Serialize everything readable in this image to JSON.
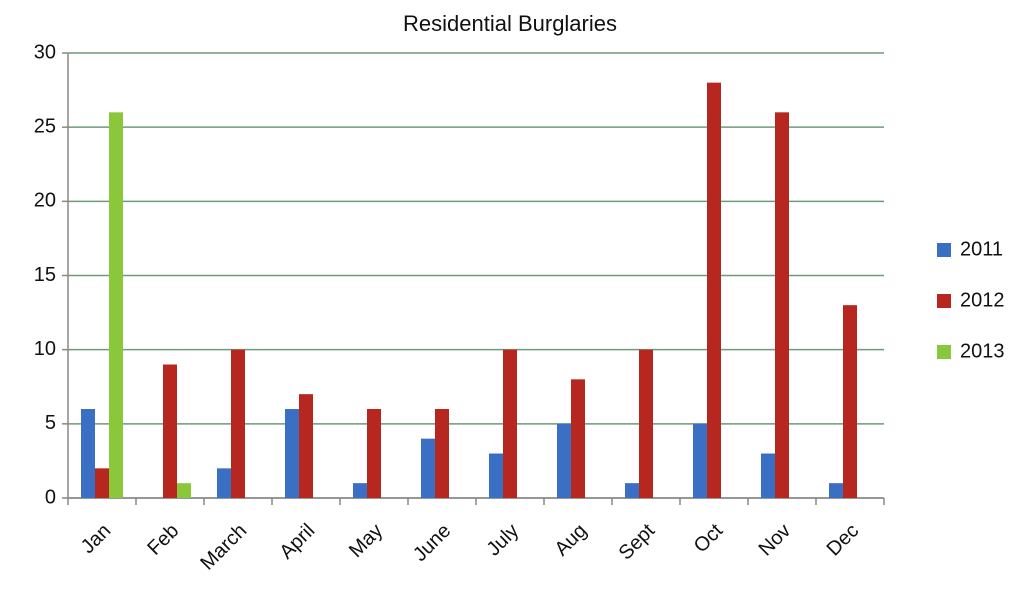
{
  "chart_data": {
    "type": "bar",
    "title": "Residential Burglaries",
    "categories": [
      "Jan",
      "Feb",
      "March",
      "April",
      "May",
      "June",
      "July",
      "Aug",
      "Sept",
      "Oct",
      "Nov",
      "Dec"
    ],
    "series": [
      {
        "name": "2011",
        "color": "#3a6fc4",
        "values": [
          6,
          0,
          2,
          6,
          1,
          4,
          3,
          5,
          1,
          5,
          3,
          1
        ]
      },
      {
        "name": "2012",
        "color": "#b5271f",
        "values": [
          2,
          9,
          10,
          7,
          6,
          6,
          10,
          8,
          10,
          28,
          26,
          13
        ]
      },
      {
        "name": "2013",
        "color": "#8ac73a",
        "values": [
          26,
          1,
          null,
          null,
          null,
          null,
          null,
          null,
          null,
          null,
          null,
          null
        ]
      }
    ],
    "ylim": [
      0,
      30
    ],
    "yticks": [
      0,
      5,
      10,
      15,
      20,
      25,
      30
    ],
    "grid": true,
    "legend": "right"
  }
}
